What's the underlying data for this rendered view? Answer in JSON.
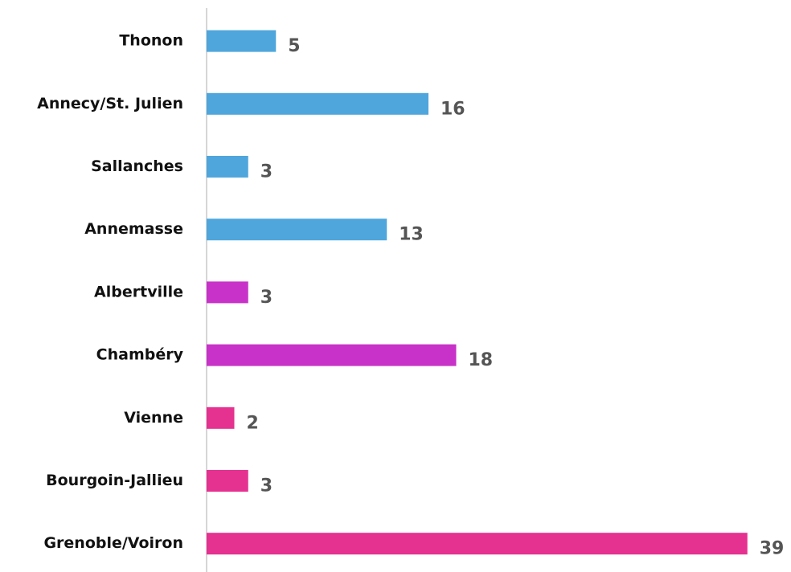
{
  "chart_data": {
    "type": "barh",
    "categories": [
      "Thonon",
      "Annecy/St. Julien",
      "Sallanches",
      "Annemasse",
      "Albertville",
      "Chambéry",
      "Vienne",
      "Bourgoin-Jallieu",
      "Grenoble/Voiron"
    ],
    "values": [
      5,
      16,
      3,
      13,
      3,
      18,
      2,
      3,
      39
    ],
    "colors": [
      "#4fa6dc",
      "#4fa6dc",
      "#4fa6dc",
      "#4fa6dc",
      "#c832c8",
      "#c832c8",
      "#e5318f",
      "#e5318f",
      "#e5318f"
    ]
  }
}
